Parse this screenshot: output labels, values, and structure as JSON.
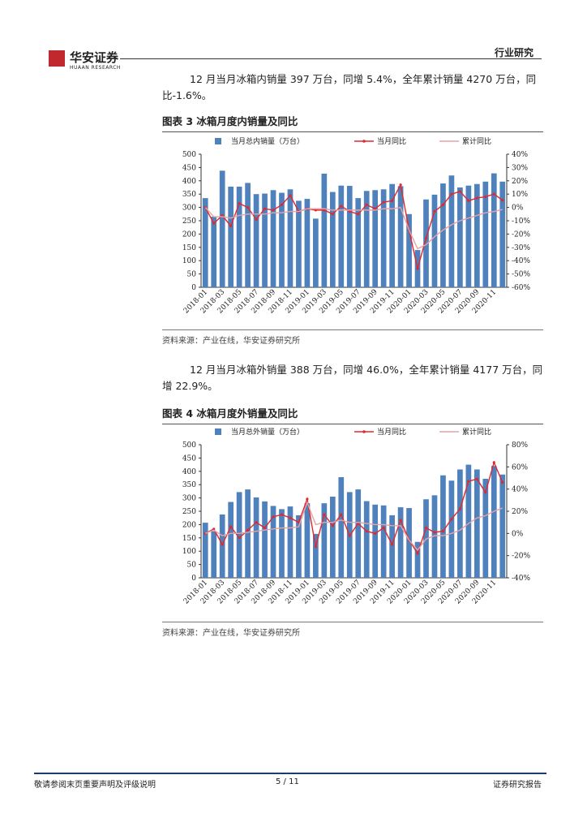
{
  "header": {
    "logo_text": "华安证券",
    "logo_sub": "HUAAN RESEARCH",
    "section": "行业研究"
  },
  "paragraphs": [
    "12 月当月冰箱内销量 397 万台，同增 5.4%，全年累计销量 4270 万台，同比-1.6%。",
    "12 月当月冰箱外销量 388 万台，同增 46.0%，全年累计销量 4177 万台，同增 22.9%。"
  ],
  "chart_data": [
    {
      "type": "combo",
      "title": "图表 3 冰箱月度内销量及同比",
      "source": "资料来源：产业在线，华安证券研究所",
      "categories": [
        "2018-01",
        null,
        "2018-03",
        null,
        "2018-05",
        null,
        "2018-07",
        null,
        "2018-09",
        null,
        "2018-11",
        null,
        "2019-01",
        null,
        "2019-03",
        null,
        "2019-05",
        null,
        "2019-07",
        null,
        "2019-09",
        null,
        "2019-11",
        null,
        "2020-01",
        null,
        "2020-03",
        null,
        "2020-05",
        null,
        "2020-07",
        null,
        "2020-09",
        null,
        "2020-11",
        null
      ],
      "series": [
        {
          "name": "当月总内销量（万台）",
          "type": "bar",
          "color": "#4f81bd",
          "values": [
            335,
            265,
            438,
            378,
            378,
            392,
            350,
            352,
            365,
            355,
            368,
            325,
            332,
            258,
            427,
            358,
            382,
            381,
            335,
            362,
            365,
            368,
            388,
            380,
            275,
            140,
            330,
            348,
            390,
            420,
            375,
            382,
            388,
            397,
            428,
            397
          ]
        },
        {
          "name": "当月同比",
          "type": "line",
          "axis": "y2",
          "markers": true,
          "color": "#e0282e",
          "values": [
            0,
            -12,
            -6,
            -14,
            3,
            0,
            -9,
            -1,
            -2,
            2,
            9,
            -3,
            -1,
            -2,
            -2,
            -5,
            1,
            -3,
            -5,
            2,
            -1,
            4,
            5,
            17,
            -17,
            -46,
            -23,
            -3,
            2,
            10,
            12,
            5,
            7,
            8,
            10,
            5.4
          ]
        },
        {
          "name": "累计同比",
          "type": "line",
          "axis": "y2",
          "markers": false,
          "color": "#e6a3a3",
          "values": [
            0,
            -7,
            -7,
            -8,
            -6,
            -5,
            -5,
            -5,
            -4,
            -4,
            -3,
            -3,
            -1,
            -1,
            -1,
            -2,
            -2,
            -2,
            -2,
            -2,
            -2,
            -1,
            -1,
            0,
            -17,
            -31,
            -28,
            -22,
            -17,
            -13,
            -10,
            -8,
            -6,
            -4,
            -3,
            -1.6
          ]
        }
      ],
      "ylim": [
        0,
        500
      ],
      "yticks": [
        0,
        50,
        100,
        150,
        200,
        250,
        300,
        350,
        400,
        450,
        500
      ],
      "y2lim": [
        -60,
        40
      ],
      "y2ticks": [
        {
          "value": -60,
          "label": "-60%"
        },
        {
          "value": -50,
          "label": "-50%"
        },
        {
          "value": -40,
          "label": "-40%"
        },
        {
          "value": -30,
          "label": "-30%"
        },
        {
          "value": -20,
          "label": "-20%"
        },
        {
          "value": -10,
          "label": "-10%"
        },
        {
          "value": 0,
          "label": "0%"
        },
        {
          "value": 10,
          "label": "10%"
        },
        {
          "value": 20,
          "label": "20%"
        },
        {
          "value": 30,
          "label": "30%"
        },
        {
          "value": 40,
          "label": "40%"
        }
      ]
    },
    {
      "type": "combo",
      "title": "图表 4 冰箱月度外销量及同比",
      "source": "资料来源：产业在线，华安证券研究所",
      "categories": [
        "2018-01",
        null,
        "2018-03",
        null,
        "2018-05",
        null,
        "2018-07",
        null,
        "2018-09",
        null,
        "2018-11",
        null,
        "2019-01",
        null,
        "2019-03",
        null,
        "2019-05",
        null,
        "2019-07",
        null,
        "2019-09",
        null,
        "2019-11",
        null,
        "2020-01",
        null,
        "2020-03",
        null,
        "2020-05",
        null,
        "2020-07",
        null,
        "2020-09",
        null,
        "2020-11",
        null
      ],
      "series": [
        {
          "name": "当月总外销量（万台）",
          "type": "bar",
          "color": "#4f81bd",
          "values": [
            207,
            175,
            238,
            285,
            322,
            332,
            302,
            287,
            270,
            258,
            268,
            235,
            280,
            165,
            280,
            305,
            378,
            322,
            332,
            288,
            275,
            272,
            235,
            265,
            262,
            135,
            295,
            310,
            385,
            365,
            407,
            425,
            407,
            372,
            420,
            388
          ]
        },
        {
          "name": "当月同比",
          "type": "line",
          "axis": "y2",
          "markers": true,
          "color": "#e0282e",
          "values": [
            0,
            4,
            -10,
            6,
            -4,
            3,
            10,
            5,
            15,
            17,
            14,
            10,
            31,
            -12,
            17,
            7,
            17,
            -2,
            9,
            2,
            0,
            5,
            -10,
            12,
            -6,
            -18,
            5,
            1,
            2,
            13,
            22,
            47,
            49,
            37,
            64,
            46
          ]
        },
        {
          "name": "累计同比",
          "type": "line",
          "axis": "y2",
          "markers": false,
          "color": "#e6a3a3",
          "values": [
            0,
            3,
            -2,
            0,
            0,
            1,
            2,
            3,
            4,
            5,
            5,
            6,
            28,
            8,
            10,
            10,
            12,
            10,
            10,
            9,
            8,
            8,
            7,
            7,
            -6,
            -15,
            -5,
            -2,
            -2,
            0,
            3,
            9,
            14,
            16,
            20,
            22.9
          ]
        }
      ],
      "ylim": [
        0,
        500
      ],
      "yticks": [
        0,
        50,
        100,
        150,
        200,
        250,
        300,
        350,
        400,
        450,
        500
      ],
      "y2lim": [
        -40,
        80
      ],
      "y2ticks": [
        {
          "value": -40,
          "label": "-40%"
        },
        {
          "value": -20,
          "label": "-20%"
        },
        {
          "value": 0,
          "label": "0%"
        },
        {
          "value": 20,
          "label": "20%"
        },
        {
          "value": 40,
          "label": "40%"
        },
        {
          "value": 60,
          "label": "60%"
        },
        {
          "value": 80,
          "label": "80%"
        }
      ]
    }
  ],
  "footer": {
    "disclaimer": "敬请参阅末页重要声明及评级说明",
    "page": "5 / 11",
    "label": "证券研究报告"
  }
}
